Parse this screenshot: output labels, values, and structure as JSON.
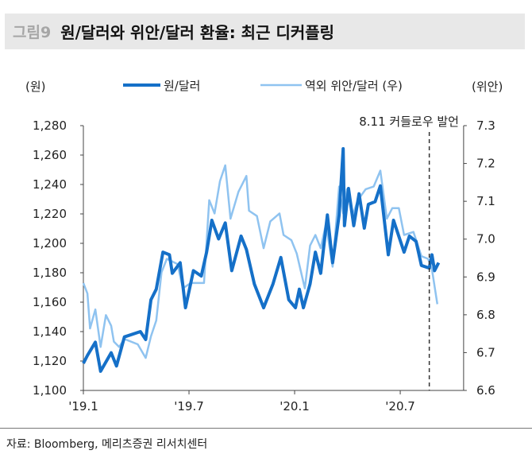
{
  "figure_number": "그림9",
  "title": "원/달러와 위안/달러 환율: 최근 디커플링",
  "source": "자료: Bloomberg, 메리츠증권 리서치센터",
  "chart_data": {
    "type": "line",
    "left_axis": {
      "unit_label": "(원)",
      "range": [
        1100,
        1280
      ],
      "ticks": [
        1100,
        1120,
        1140,
        1160,
        1180,
        1200,
        1220,
        1240,
        1260,
        1280
      ],
      "tick_labels": [
        "1,100",
        "1,120",
        "1,140",
        "1,160",
        "1,180",
        "1,200",
        "1,220",
        "1,240",
        "1,260",
        "1,280"
      ]
    },
    "right_axis": {
      "unit_label": "(위안)",
      "range": [
        6.6,
        7.3
      ],
      "ticks": [
        6.6,
        6.7,
        6.8,
        6.9,
        7.0,
        7.1,
        7.2,
        7.3
      ],
      "tick_labels": [
        "6.6",
        "6.7",
        "6.8",
        "6.9",
        "7.0",
        "7.1",
        "7.2",
        "7.3"
      ]
    },
    "x_axis": {
      "unit": "months since 2019-01",
      "range": [
        0,
        21.6
      ],
      "ticks": [
        0,
        6,
        12,
        18
      ],
      "tick_labels": [
        "'19.1",
        "'19.7",
        "'20.1",
        "'20.7"
      ]
    },
    "legend_position": "top",
    "annotation": {
      "label": "8.11 커들로우 발언",
      "x": 19.65,
      "style": "dashed-vertical"
    },
    "series": [
      {
        "name": "원/달러",
        "axis": "left",
        "color": "#1570c8",
        "x": [
          0,
          0.23,
          0.68,
          0.98,
          1.58,
          1.88,
          2.33,
          3.24,
          3.54,
          3.84,
          4.14,
          4.52,
          4.89,
          5.05,
          5.5,
          5.8,
          6.25,
          6.7,
          7.0,
          7.3,
          7.68,
          8.06,
          8.43,
          8.96,
          9.26,
          9.71,
          10.24,
          10.77,
          11.22,
          11.67,
          12.05,
          12.27,
          12.5,
          12.88,
          13.18,
          13.48,
          13.86,
          14.16,
          14.53,
          14.76,
          14.83,
          15.06,
          15.36,
          15.66,
          15.96,
          16.19,
          16.57,
          16.87,
          17.32,
          17.62,
          18.22,
          18.52,
          18.9,
          19.2,
          19.65,
          19.8,
          19.95,
          20.18
        ],
        "values": [
          1118.4,
          1123.8,
          1132.8,
          1113,
          1125.6,
          1116.6,
          1136.4,
          1140,
          1134.6,
          1161.6,
          1168.8,
          1194,
          1192.2,
          1179.6,
          1186.8,
          1156.2,
          1181.4,
          1177.8,
          1194,
          1215.7,
          1203,
          1213.9,
          1181.4,
          1204.9,
          1195.9,
          1172.4,
          1156.2,
          1172.4,
          1190.4,
          1161.6,
          1156.2,
          1168.8,
          1156.2,
          1172.4,
          1194,
          1179.6,
          1219.3,
          1186.8,
          1219.3,
          1264.3,
          1212,
          1237.3,
          1212,
          1233.7,
          1210.3,
          1226.5,
          1228.3,
          1239.1,
          1192.2,
          1215.7,
          1194,
          1204.9,
          1201.3,
          1185,
          1183.2,
          1192.2,
          1181.4,
          1186.8
        ]
      },
      {
        "name": "역외 위안/달러 (우)",
        "axis": "right",
        "color": "#8fc3f0",
        "x": [
          0,
          0.23,
          0.38,
          0.68,
          0.98,
          1.28,
          1.58,
          1.73,
          2.03,
          2.33,
          3.09,
          3.54,
          3.84,
          4.14,
          4.44,
          4.74,
          5.35,
          5.65,
          6.1,
          6.85,
          7.15,
          7.45,
          7.76,
          8.06,
          8.36,
          8.81,
          9.26,
          9.41,
          9.86,
          10.24,
          10.62,
          11.14,
          11.37,
          11.82,
          12.12,
          12.58,
          12.88,
          13.18,
          13.48,
          13.78,
          14.16,
          14.53,
          14.76,
          14.98,
          15.29,
          15.59,
          16.04,
          16.49,
          16.87,
          17.24,
          17.55,
          17.92,
          18.22,
          18.75,
          19.2,
          19.58,
          19.8,
          20.11
        ],
        "values": [
          6.884,
          6.856,
          6.764,
          6.814,
          6.715,
          6.799,
          6.771,
          6.729,
          6.715,
          6.736,
          6.722,
          6.686,
          6.743,
          6.785,
          6.912,
          6.948,
          6.934,
          6.87,
          6.884,
          6.884,
          7.103,
          7.068,
          7.153,
          7.195,
          7.054,
          7.125,
          7.167,
          7.075,
          7.061,
          6.976,
          7.047,
          7.068,
          7.011,
          6.997,
          6.962,
          6.87,
          6.983,
          7.011,
          6.976,
          7.04,
          6.927,
          7.139,
          7.068,
          7.132,
          7.061,
          7.103,
          7.132,
          7.139,
          7.181,
          7.054,
          7.082,
          7.082,
          7.011,
          7.019,
          6.955,
          6.948,
          6.92,
          6.828
        ]
      }
    ]
  }
}
